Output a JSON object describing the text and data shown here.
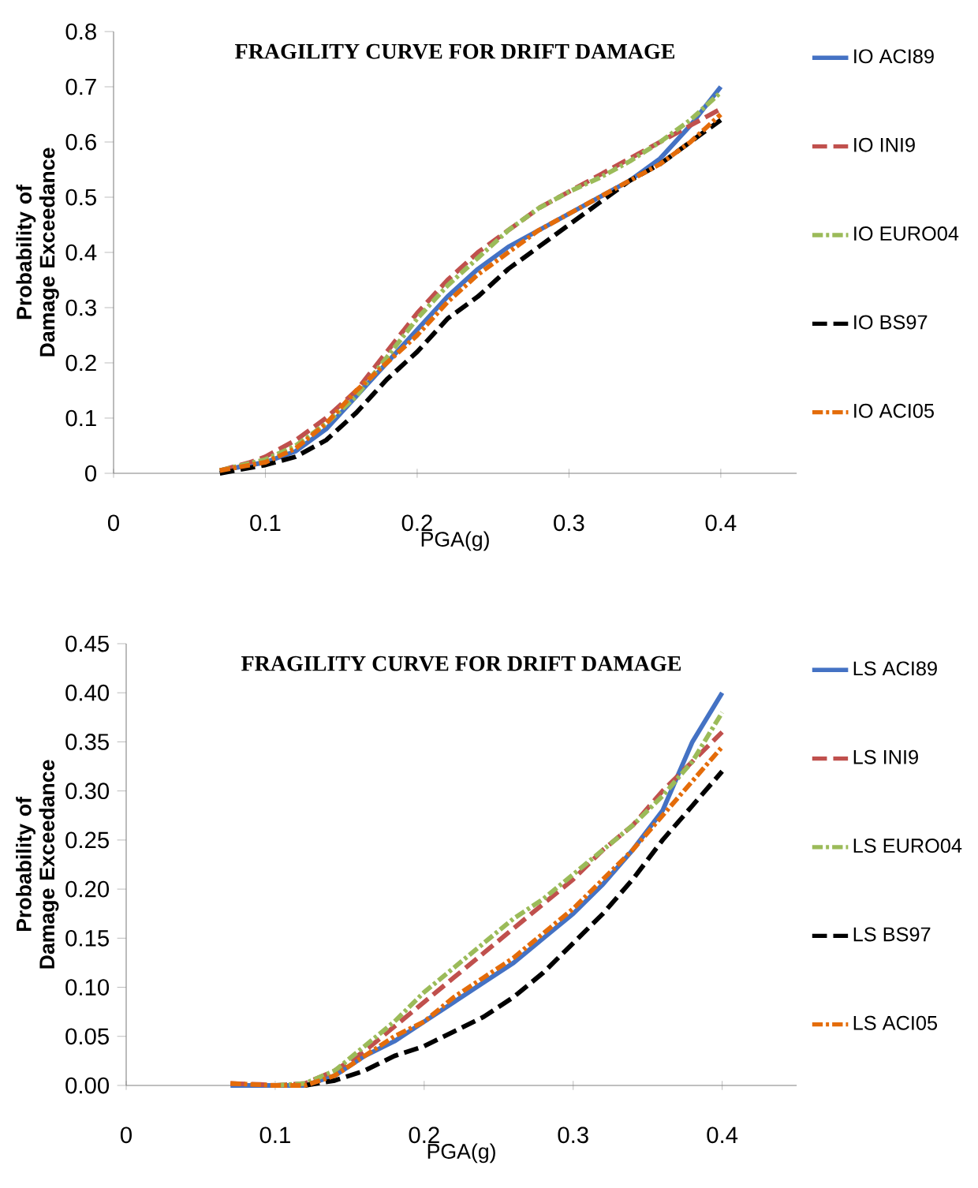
{
  "chart_data": [
    {
      "type": "line",
      "title": "FRAGILITY CURVE FOR DRIFT DAMAGE",
      "xlabel": "PGA(g)",
      "ylabel": "Probability of Damage Exceedance",
      "xlim": [
        0,
        0.45
      ],
      "xticks": [
        0,
        0.1,
        0.2,
        0.3,
        0.4
      ],
      "ylim": [
        0,
        0.8
      ],
      "yticks": [
        0,
        0.1,
        0.2,
        0.3,
        0.4,
        0.5,
        0.6,
        0.7,
        0.8
      ],
      "legend": "right",
      "grid": false,
      "marker": "none",
      "series": [
        {
          "name": "IO ACI89",
          "color": "#4472c4",
          "line_style": "solid",
          "x": [
            0.07,
            0.1,
            0.12,
            0.14,
            0.16,
            0.18,
            0.2,
            0.22,
            0.24,
            0.26,
            0.28,
            0.3,
            0.32,
            0.34,
            0.36,
            0.38,
            0.4
          ],
          "values": [
            0.005,
            0.02,
            0.04,
            0.08,
            0.14,
            0.2,
            0.26,
            0.32,
            0.37,
            0.41,
            0.44,
            0.47,
            0.5,
            0.53,
            0.57,
            0.63,
            0.7
          ]
        },
        {
          "name": "IO INI9",
          "color": "#c0504d",
          "line_style": "dashed",
          "x": [
            0.07,
            0.09,
            0.1,
            0.12,
            0.14,
            0.16,
            0.18,
            0.2,
            0.22,
            0.24,
            0.26,
            0.28,
            0.3,
            0.32,
            0.34,
            0.36,
            0.38,
            0.4
          ],
          "values": [
            0.005,
            0.02,
            0.03,
            0.06,
            0.1,
            0.15,
            0.22,
            0.29,
            0.35,
            0.4,
            0.44,
            0.48,
            0.51,
            0.54,
            0.57,
            0.6,
            0.63,
            0.66
          ]
        },
        {
          "name": "IO EURO04",
          "color": "#9bbb59",
          "line_style": "dashdotted",
          "x": [
            0.07,
            0.1,
            0.12,
            0.14,
            0.16,
            0.18,
            0.2,
            0.22,
            0.24,
            0.26,
            0.28,
            0.3,
            0.32,
            0.34,
            0.36,
            0.38,
            0.4
          ],
          "values": [
            0.005,
            0.025,
            0.05,
            0.09,
            0.14,
            0.21,
            0.28,
            0.34,
            0.39,
            0.44,
            0.48,
            0.51,
            0.535,
            0.565,
            0.6,
            0.64,
            0.69
          ]
        },
        {
          "name": "IO BS97",
          "color": "#000000",
          "line_style": "dashed",
          "x": [
            0.07,
            0.1,
            0.12,
            0.14,
            0.16,
            0.18,
            0.2,
            0.22,
            0.24,
            0.26,
            0.28,
            0.3,
            0.32,
            0.34,
            0.36,
            0.38,
            0.4
          ],
          "values": [
            0,
            0.015,
            0.03,
            0.06,
            0.11,
            0.17,
            0.22,
            0.28,
            0.32,
            0.37,
            0.41,
            0.45,
            0.49,
            0.53,
            0.56,
            0.6,
            0.64
          ]
        },
        {
          "name": "IO ACI05",
          "color": "#e46c0a",
          "line_style": "dashdotted",
          "x": [
            0.07,
            0.1,
            0.12,
            0.14,
            0.16,
            0.18,
            0.2,
            0.22,
            0.24,
            0.26,
            0.28,
            0.3,
            0.32,
            0.34,
            0.36,
            0.38,
            0.4
          ],
          "values": [
            0.005,
            0.02,
            0.045,
            0.09,
            0.15,
            0.2,
            0.25,
            0.31,
            0.36,
            0.4,
            0.44,
            0.47,
            0.5,
            0.53,
            0.56,
            0.6,
            0.65
          ]
        }
      ]
    },
    {
      "type": "line",
      "title": "FRAGILITY CURVE FOR DRIFT DAMAGE",
      "xlabel": "PGA(g)",
      "ylabel": "Probability of Damage Exceedance",
      "xlim": [
        0,
        0.45
      ],
      "xticks": [
        0,
        0.1,
        0.2,
        0.3,
        0.4
      ],
      "ylim": [
        0,
        0.45
      ],
      "yticks": [
        {
          "value": 0,
          "label": "0.00"
        },
        {
          "value": 0.05,
          "label": "0.05"
        },
        {
          "value": 0.1,
          "label": "0.10"
        },
        {
          "value": 0.15,
          "label": "0.15"
        },
        {
          "value": 0.2,
          "label": "0.20"
        },
        {
          "value": 0.25,
          "label": "0.25"
        },
        {
          "value": 0.3,
          "label": "0.30"
        },
        {
          "value": 0.35,
          "label": "0.35"
        },
        {
          "value": 0.4,
          "label": "0.40"
        },
        {
          "value": 0.45,
          "label": "0.45"
        }
      ],
      "legend": "right",
      "grid": false,
      "marker": "none",
      "series": [
        {
          "name": "LS ACI89",
          "color": "#4472c4",
          "line_style": "solid",
          "x": [
            0.07,
            0.1,
            0.12,
            0.14,
            0.16,
            0.18,
            0.2,
            0.22,
            0.24,
            0.26,
            0.28,
            0.3,
            0.32,
            0.34,
            0.36,
            0.38,
            0.4
          ],
          "values": [
            0,
            0,
            0,
            0.01,
            0.03,
            0.045,
            0.065,
            0.085,
            0.105,
            0.125,
            0.15,
            0.175,
            0.205,
            0.24,
            0.28,
            0.35,
            0.4
          ]
        },
        {
          "name": "LS INI9",
          "color": "#c0504d",
          "line_style": "dashed",
          "x": [
            0.07,
            0.09,
            0.1,
            0.12,
            0.14,
            0.16,
            0.18,
            0.2,
            0.22,
            0.24,
            0.26,
            0.28,
            0.3,
            0.32,
            0.34,
            0.36,
            0.38,
            0.4
          ],
          "values": [
            0.002,
            0.001,
            0,
            0.002,
            0.015,
            0.035,
            0.06,
            0.085,
            0.11,
            0.135,
            0.16,
            0.185,
            0.21,
            0.24,
            0.265,
            0.3,
            0.33,
            0.36
          ]
        },
        {
          "name": "LS EURO04",
          "color": "#9bbb59",
          "line_style": "dashdotted",
          "x": [
            0.1,
            0.12,
            0.14,
            0.16,
            0.18,
            0.2,
            0.22,
            0.24,
            0.26,
            0.28,
            0.3,
            0.32,
            0.34,
            0.36,
            0.38,
            0.4
          ],
          "values": [
            0,
            0.002,
            0.015,
            0.04,
            0.065,
            0.095,
            0.12,
            0.145,
            0.17,
            0.19,
            0.215,
            0.24,
            0.265,
            0.295,
            0.33,
            0.38
          ]
        },
        {
          "name": "LS BS97",
          "color": "#000000",
          "line_style": "dashed",
          "x": [
            0.12,
            0.14,
            0.16,
            0.18,
            0.2,
            0.22,
            0.24,
            0.26,
            0.28,
            0.3,
            0.32,
            0.34,
            0.36,
            0.38,
            0.4
          ],
          "values": [
            0,
            0.005,
            0.015,
            0.03,
            0.04,
            0.055,
            0.07,
            0.09,
            0.115,
            0.145,
            0.175,
            0.21,
            0.25,
            0.285,
            0.32
          ]
        },
        {
          "name": "LS ACI05",
          "color": "#e46c0a",
          "line_style": "dashdotted",
          "x": [
            0.07,
            0.1,
            0.12,
            0.14,
            0.16,
            0.18,
            0.2,
            0.22,
            0.24,
            0.26,
            0.28,
            0.3,
            0.32,
            0.34,
            0.36,
            0.38,
            0.4
          ],
          "values": [
            0.002,
            0,
            0,
            0.01,
            0.03,
            0.05,
            0.065,
            0.09,
            0.11,
            0.13,
            0.155,
            0.18,
            0.21,
            0.24,
            0.275,
            0.31,
            0.345
          ]
        }
      ]
    }
  ]
}
